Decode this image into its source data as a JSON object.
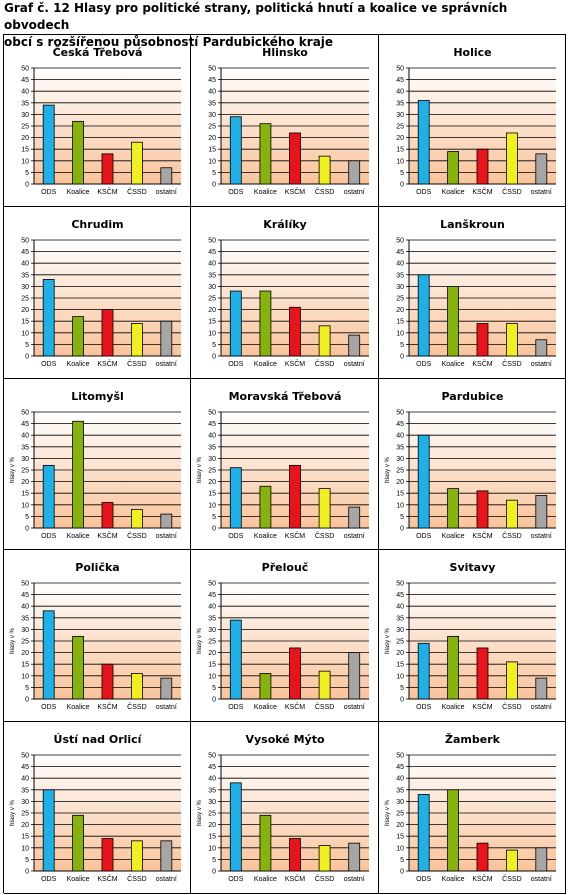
{
  "page": {
    "title_line1": "Graf č. 12 Hlasy pro politické strany, politická hnutí a koalice ve správních obvodech",
    "title_line2": "obcí s rozšířenou působností Pardubického kraje"
  },
  "colors": {
    "series": [
      "#1fb0e8",
      "#86b20e",
      "#e8141b",
      "#f0f020",
      "#a6a6a6"
    ],
    "plot_gradient_top": "#ffffff",
    "plot_gradient_bottom": "#f9c39a"
  },
  "chart_data": [
    {
      "type": "bar",
      "title": "Česká Třebová",
      "categories": [
        "ODS",
        "Koalice",
        "KSČM",
        "ČSSD",
        "ostatní"
      ],
      "values": [
        34,
        27,
        13,
        18,
        7
      ],
      "ylim": [
        0,
        50
      ],
      "ylabel": ""
    },
    {
      "type": "bar",
      "title": "Hlinsko",
      "categories": [
        "ODS",
        "Koalice",
        "KSČM",
        "ČSSD",
        "ostatní"
      ],
      "values": [
        29,
        26,
        22,
        12,
        10
      ],
      "ylim": [
        0,
        50
      ],
      "ylabel": ""
    },
    {
      "type": "bar",
      "title": "Holice",
      "categories": [
        "ODS",
        "Koalice",
        "KSČM",
        "ČSSD",
        "ostatní"
      ],
      "values": [
        36,
        14,
        15,
        22,
        13
      ],
      "ylim": [
        0,
        50
      ],
      "ylabel": ""
    },
    {
      "type": "bar",
      "title": "Chrudim",
      "categories": [
        "ODS",
        "Koalice",
        "KSČM",
        "ČSSD",
        "ostatní"
      ],
      "values": [
        33,
        17,
        20,
        14,
        15
      ],
      "ylim": [
        0,
        50
      ],
      "ylabel": ""
    },
    {
      "type": "bar",
      "title": "Králíky",
      "categories": [
        "ODS",
        "Koalice",
        "KSČM",
        "ČSSD",
        "ostatní"
      ],
      "values": [
        28,
        28,
        21,
        13,
        9
      ],
      "ylim": [
        0,
        50
      ],
      "ylabel": ""
    },
    {
      "type": "bar",
      "title": "Lanškroun",
      "categories": [
        "ODS",
        "Koalice",
        "KSČM",
        "ČSSD",
        "ostatní"
      ],
      "values": [
        35,
        30,
        14,
        14,
        7
      ],
      "ylim": [
        0,
        50
      ],
      "ylabel": ""
    },
    {
      "type": "bar",
      "title": "Litomyšl",
      "categories": [
        "ODS",
        "Koalice",
        "KSČM",
        "ČSSD",
        "ostatní"
      ],
      "values": [
        27,
        46,
        11,
        8,
        6
      ],
      "ylim": [
        0,
        50
      ],
      "ylabel": "hlasy v %"
    },
    {
      "type": "bar",
      "title": "Moravská Třebová",
      "categories": [
        "ODS",
        "Koalice",
        "KSČM",
        "ČSSD",
        "ostatní"
      ],
      "values": [
        26,
        18,
        27,
        17,
        9
      ],
      "ylim": [
        0,
        50
      ],
      "ylabel": "hlasy v %"
    },
    {
      "type": "bar",
      "title": "Pardubice",
      "categories": [
        "ODS",
        "Koalice",
        "KSČM",
        "ČSSD",
        "ostatní"
      ],
      "values": [
        40,
        17,
        16,
        12,
        14
      ],
      "ylim": [
        0,
        50
      ],
      "ylabel": "hlasy v %"
    },
    {
      "type": "bar",
      "title": "Polička",
      "categories": [
        "ODS",
        "Koalice",
        "KSČM",
        "ČSSD",
        "ostatní"
      ],
      "values": [
        38,
        27,
        15,
        11,
        9
      ],
      "ylim": [
        0,
        50
      ],
      "ylabel": "hlasy v %"
    },
    {
      "type": "bar",
      "title": "Přelouč",
      "categories": [
        "ODS",
        "Koalice",
        "KSČM",
        "ČSSD",
        "ostatní"
      ],
      "values": [
        34,
        11,
        22,
        12,
        20
      ],
      "ylim": [
        0,
        50
      ],
      "ylabel": "hlasy v %"
    },
    {
      "type": "bar",
      "title": "Svitavy",
      "categories": [
        "ODS",
        "Koalice",
        "KSČM",
        "ČSSD",
        "ostatní"
      ],
      "values": [
        24,
        27,
        22,
        16,
        9
      ],
      "ylim": [
        0,
        50
      ],
      "ylabel": "hlasy v %"
    },
    {
      "type": "bar",
      "title": "Ústí nad Orlicí",
      "categories": [
        "ODS",
        "Koalice",
        "KSČM",
        "ČSSD",
        "ostatní"
      ],
      "values": [
        35,
        24,
        14,
        13,
        13
      ],
      "ylim": [
        0,
        50
      ],
      "ylabel": "hlasy v %"
    },
    {
      "type": "bar",
      "title": "Vysoké Mýto",
      "categories": [
        "ODS",
        "Koalice",
        "KSČM",
        "ČSSD",
        "ostatní"
      ],
      "values": [
        38,
        24,
        14,
        11,
        12
      ],
      "ylim": [
        0,
        50
      ],
      "ylabel": "hlasy v %"
    },
    {
      "type": "bar",
      "title": "Žamberk",
      "categories": [
        "ODS",
        "Koalice",
        "KSČM",
        "ČSSD",
        "ostatní"
      ],
      "values": [
        33,
        35,
        12,
        9,
        10
      ],
      "ylim": [
        0,
        50
      ],
      "ylabel": "hlasy v %"
    }
  ]
}
